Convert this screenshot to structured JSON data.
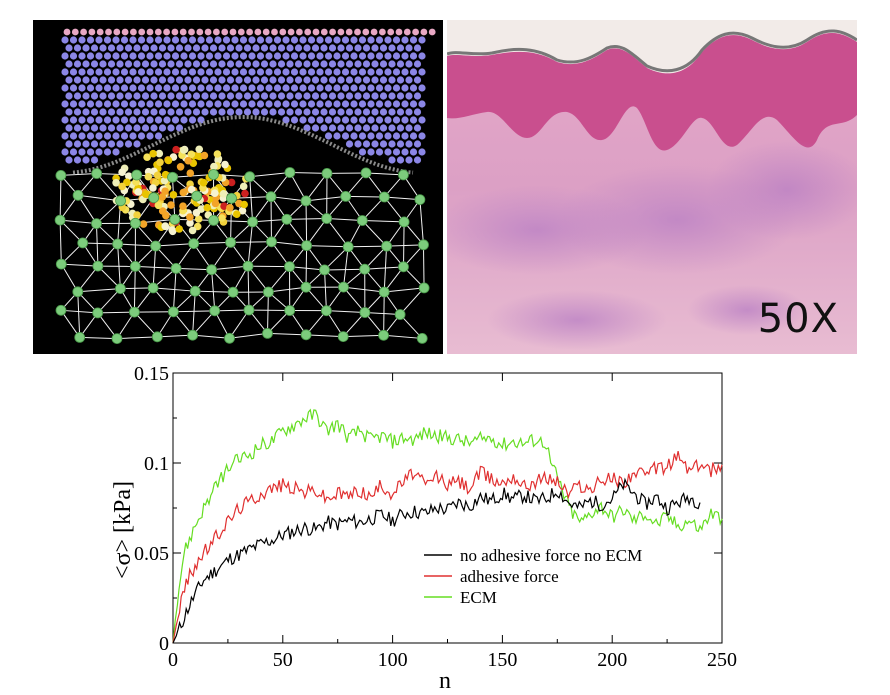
{
  "images": {
    "left_panel": "simulation-render",
    "right_panel": "histology-micrograph",
    "magnification": "50X"
  },
  "chart_data": {
    "type": "line",
    "xlabel": "n",
    "ylabel": "<σ>  [kPa]",
    "xlim": [
      0,
      250
    ],
    "ylim": [
      0,
      0.15
    ],
    "xticks": [
      "0",
      "50",
      "100",
      "150",
      "200",
      "250"
    ],
    "yticks": [
      "0",
      "0.05",
      "0.1",
      "0.15"
    ],
    "grid": false,
    "legend_position": "inside-lower-right",
    "series": [
      {
        "name": "no adhesive force no ECM",
        "color": "#000000",
        "points": [
          [
            0,
            0
          ],
          [
            3,
            0.008
          ],
          [
            6,
            0.017
          ],
          [
            10,
            0.027
          ],
          [
            14,
            0.035
          ],
          [
            18,
            0.039
          ],
          [
            22,
            0.043
          ],
          [
            26,
            0.047
          ],
          [
            30,
            0.049
          ],
          [
            35,
            0.052
          ],
          [
            40,
            0.055
          ],
          [
            45,
            0.057
          ],
          [
            50,
            0.06
          ],
          [
            55,
            0.062
          ],
          [
            60,
            0.064
          ],
          [
            65,
            0.063
          ],
          [
            70,
            0.067
          ],
          [
            75,
            0.066
          ],
          [
            80,
            0.068
          ],
          [
            85,
            0.067
          ],
          [
            90,
            0.069
          ],
          [
            95,
            0.071
          ],
          [
            100,
            0.068
          ],
          [
            105,
            0.072
          ],
          [
            110,
            0.073
          ],
          [
            115,
            0.072
          ],
          [
            120,
            0.075
          ],
          [
            125,
            0.074
          ],
          [
            130,
            0.078
          ],
          [
            135,
            0.076
          ],
          [
            140,
            0.081
          ],
          [
            145,
            0.079
          ],
          [
            150,
            0.083
          ],
          [
            155,
            0.08
          ],
          [
            160,
            0.082
          ],
          [
            165,
            0.079
          ],
          [
            170,
            0.08
          ],
          [
            175,
            0.085
          ],
          [
            180,
            0.078
          ],
          [
            185,
            0.075
          ],
          [
            190,
            0.079
          ],
          [
            195,
            0.077
          ],
          [
            200,
            0.08
          ],
          [
            205,
            0.088
          ],
          [
            210,
            0.083
          ],
          [
            215,
            0.077
          ],
          [
            220,
            0.081
          ],
          [
            225,
            0.075
          ],
          [
            230,
            0.078
          ],
          [
            235,
            0.081
          ],
          [
            240,
            0.078
          ]
        ]
      },
      {
        "name": "adhesive force",
        "color": "#e03030",
        "points": [
          [
            0,
            0
          ],
          [
            3,
            0.02
          ],
          [
            6,
            0.033
          ],
          [
            10,
            0.043
          ],
          [
            14,
            0.05
          ],
          [
            18,
            0.056
          ],
          [
            22,
            0.063
          ],
          [
            26,
            0.069
          ],
          [
            30,
            0.075
          ],
          [
            35,
            0.079
          ],
          [
            40,
            0.083
          ],
          [
            45,
            0.086
          ],
          [
            50,
            0.088
          ],
          [
            55,
            0.086
          ],
          [
            60,
            0.084
          ],
          [
            65,
            0.085
          ],
          [
            70,
            0.08
          ],
          [
            75,
            0.083
          ],
          [
            80,
            0.082
          ],
          [
            85,
            0.085
          ],
          [
            90,
            0.081
          ],
          [
            95,
            0.088
          ],
          [
            100,
            0.083
          ],
          [
            105,
            0.09
          ],
          [
            110,
            0.095
          ],
          [
            115,
            0.087
          ],
          [
            120,
            0.093
          ],
          [
            125,
            0.088
          ],
          [
            130,
            0.09
          ],
          [
            135,
            0.086
          ],
          [
            140,
            0.095
          ],
          [
            145,
            0.091
          ],
          [
            150,
            0.089
          ],
          [
            155,
            0.093
          ],
          [
            160,
            0.087
          ],
          [
            165,
            0.09
          ],
          [
            170,
            0.092
          ],
          [
            175,
            0.09
          ],
          [
            180,
            0.083
          ],
          [
            185,
            0.088
          ],
          [
            190,
            0.085
          ],
          [
            195,
            0.09
          ],
          [
            200,
            0.092
          ],
          [
            205,
            0.089
          ],
          [
            210,
            0.095
          ],
          [
            215,
            0.093
          ],
          [
            220,
            0.097
          ],
          [
            225,
            0.098
          ],
          [
            230,
            0.104
          ],
          [
            235,
            0.096
          ],
          [
            240,
            0.099
          ],
          [
            245,
            0.096
          ],
          [
            250,
            0.099
          ]
        ]
      },
      {
        "name": "ECM",
        "color": "#66dd22",
        "points": [
          [
            0,
            0
          ],
          [
            2,
            0.025
          ],
          [
            5,
            0.05
          ],
          [
            10,
            0.065
          ],
          [
            14,
            0.075
          ],
          [
            18,
            0.083
          ],
          [
            22,
            0.092
          ],
          [
            26,
            0.098
          ],
          [
            30,
            0.102
          ],
          [
            35,
            0.105
          ],
          [
            40,
            0.11
          ],
          [
            45,
            0.112
          ],
          [
            50,
            0.118
          ],
          [
            55,
            0.121
          ],
          [
            60,
            0.125
          ],
          [
            65,
            0.127
          ],
          [
            70,
            0.118
          ],
          [
            75,
            0.122
          ],
          [
            80,
            0.114
          ],
          [
            85,
            0.118
          ],
          [
            90,
            0.113
          ],
          [
            95,
            0.115
          ],
          [
            100,
            0.112
          ],
          [
            105,
            0.114
          ],
          [
            110,
            0.113
          ],
          [
            115,
            0.117
          ],
          [
            120,
            0.115
          ],
          [
            125,
            0.114
          ],
          [
            130,
            0.113
          ],
          [
            135,
            0.111
          ],
          [
            140,
            0.113
          ],
          [
            145,
            0.114
          ],
          [
            150,
            0.11
          ],
          [
            155,
            0.112
          ],
          [
            160,
            0.111
          ],
          [
            165,
            0.113
          ],
          [
            170,
            0.111
          ],
          [
            172,
            0.1
          ],
          [
            175,
            0.092
          ],
          [
            178,
            0.082
          ],
          [
            182,
            0.072
          ],
          [
            186,
            0.067
          ],
          [
            190,
            0.072
          ],
          [
            195,
            0.076
          ],
          [
            200,
            0.07
          ],
          [
            205,
            0.074
          ],
          [
            210,
            0.068
          ],
          [
            215,
            0.072
          ],
          [
            220,
            0.066
          ],
          [
            225,
            0.07
          ],
          [
            230,
            0.065
          ],
          [
            235,
            0.068
          ],
          [
            240,
            0.063
          ],
          [
            245,
            0.072
          ],
          [
            250,
            0.069
          ]
        ]
      }
    ]
  }
}
